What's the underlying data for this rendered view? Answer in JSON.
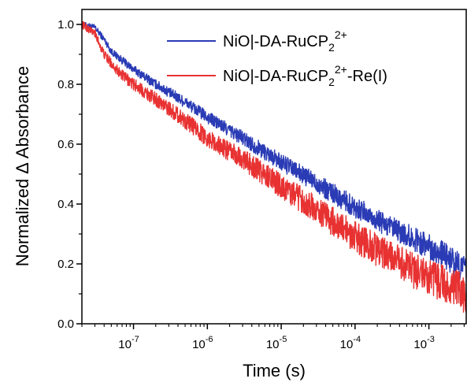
{
  "chart_data": {
    "type": "line",
    "xlabel": "Time (s)",
    "ylabel": "Normalized Δ Absorbance",
    "x_scale": "log",
    "xlim": [
      2e-08,
      0.0032
    ],
    "ylim": [
      0,
      1.05
    ],
    "x_ticks": [
      {
        "value": 1e-07,
        "base": "10",
        "exp": "-7"
      },
      {
        "value": 1e-06,
        "base": "10",
        "exp": "-6"
      },
      {
        "value": 1e-05,
        "base": "10",
        "exp": "-5"
      },
      {
        "value": 0.0001,
        "base": "10",
        "exp": "-4"
      },
      {
        "value": 0.001,
        "base": "10",
        "exp": "-3"
      }
    ],
    "y_ticks": [
      {
        "value": 0,
        "label": "0.0"
      },
      {
        "value": 0.2,
        "label": "0.2"
      },
      {
        "value": 0.4,
        "label": "0.4"
      },
      {
        "value": 0.6,
        "label": "0.6"
      },
      {
        "value": 0.8,
        "label": "0.8"
      },
      {
        "value": 1.0,
        "label": "1.0"
      }
    ],
    "grid": false,
    "legend_position": "top-right",
    "series": [
      {
        "name": "NiO|-DA-RuCP22+",
        "legend": {
          "main": "NiO|-DA-RuCP",
          "sub": "2",
          "sup": "2+",
          "tail": ""
        },
        "color": "#2a3bb5",
        "noise": 0.035,
        "x": [
          2e-08,
          3e-08,
          4e-08,
          5e-08,
          7e-08,
          1e-07,
          2e-07,
          5e-07,
          1e-06,
          3e-06,
          1e-05,
          3e-05,
          0.0001,
          0.0003,
          0.001,
          0.0032
        ],
        "y": [
          1.0,
          0.99,
          0.95,
          0.91,
          0.88,
          0.85,
          0.8,
          0.74,
          0.69,
          0.62,
          0.54,
          0.47,
          0.39,
          0.32,
          0.26,
          0.18
        ]
      },
      {
        "name": "NiO|-DA-RuCP22+-Re(I)",
        "legend": {
          "main": "NiO|-DA-RuCP",
          "sub": "2",
          "sup": "2+",
          "tail": "-Re(I)"
        },
        "color": "#e83232",
        "noise": 0.05,
        "x": [
          2e-08,
          3e-08,
          4e-08,
          5e-08,
          7e-08,
          1e-07,
          2e-07,
          5e-07,
          1e-06,
          3e-06,
          1e-05,
          3e-05,
          0.0001,
          0.0003,
          0.001,
          0.0032
        ],
        "y": [
          1.0,
          0.97,
          0.9,
          0.87,
          0.83,
          0.8,
          0.75,
          0.68,
          0.62,
          0.55,
          0.46,
          0.38,
          0.29,
          0.22,
          0.15,
          0.1
        ]
      }
    ]
  }
}
